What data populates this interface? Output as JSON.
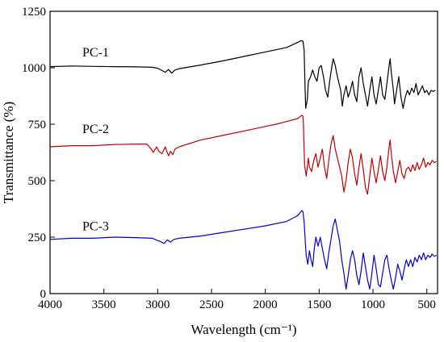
{
  "chart_data": {
    "type": "line",
    "title": "",
    "xlabel": "Wavelength (cm⁻¹)",
    "ylabel": "Transmittance (%)",
    "xlim": [
      4000,
      400
    ],
    "x_reversed": true,
    "ylim": [
      0,
      1250
    ],
    "xticks": [
      4000,
      3500,
      3000,
      2500,
      2000,
      1500,
      1000,
      500
    ],
    "yticks": [
      0,
      250,
      500,
      750,
      1000,
      1250
    ],
    "grid": false,
    "series": [
      {
        "name": "PC-1",
        "color": "#000000",
        "points": [
          [
            4000,
            1005
          ],
          [
            3800,
            1008
          ],
          [
            3600,
            1006
          ],
          [
            3400,
            1005
          ],
          [
            3200,
            1004
          ],
          [
            3050,
            1002
          ],
          [
            3000,
            998
          ],
          [
            2960,
            988
          ],
          [
            2930,
            980
          ],
          [
            2900,
            992
          ],
          [
            2870,
            976
          ],
          [
            2840,
            990
          ],
          [
            2800,
            996
          ],
          [
            2600,
            1012
          ],
          [
            2400,
            1030
          ],
          [
            2200,
            1050
          ],
          [
            2000,
            1070
          ],
          [
            1800,
            1090
          ],
          [
            1700,
            1112
          ],
          [
            1670,
            1120
          ],
          [
            1650,
            1118
          ],
          [
            1640,
            1080
          ],
          [
            1630,
            900
          ],
          [
            1625,
            820
          ],
          [
            1610,
            860
          ],
          [
            1600,
            940
          ],
          [
            1580,
            960
          ],
          [
            1560,
            990
          ],
          [
            1540,
            960
          ],
          [
            1520,
            940
          ],
          [
            1500,
            1000
          ],
          [
            1480,
            1010
          ],
          [
            1460,
            960
          ],
          [
            1440,
            900
          ],
          [
            1420,
            870
          ],
          [
            1400,
            950
          ],
          [
            1380,
            1010
          ],
          [
            1370,
            1040
          ],
          [
            1350,
            1010
          ],
          [
            1330,
            960
          ],
          [
            1300,
            900
          ],
          [
            1285,
            830
          ],
          [
            1270,
            880
          ],
          [
            1250,
            920
          ],
          [
            1230,
            870
          ],
          [
            1210,
            900
          ],
          [
            1190,
            940
          ],
          [
            1170,
            880
          ],
          [
            1150,
            850
          ],
          [
            1130,
            960
          ],
          [
            1110,
            1000
          ],
          [
            1090,
            930
          ],
          [
            1070,
            880
          ],
          [
            1050,
            830
          ],
          [
            1030,
            900
          ],
          [
            1010,
            960
          ],
          [
            990,
            880
          ],
          [
            970,
            840
          ],
          [
            950,
            900
          ],
          [
            930,
            960
          ],
          [
            910,
            880
          ],
          [
            890,
            860
          ],
          [
            870,
            930
          ],
          [
            850,
            1010
          ],
          [
            840,
            1040
          ],
          [
            830,
            980
          ],
          [
            810,
            900
          ],
          [
            800,
            840
          ],
          [
            780,
            900
          ],
          [
            760,
            960
          ],
          [
            740,
            870
          ],
          [
            720,
            820
          ],
          [
            700,
            870
          ],
          [
            680,
            900
          ],
          [
            660,
            880
          ],
          [
            640,
            910
          ],
          [
            620,
            890
          ],
          [
            600,
            930
          ],
          [
            580,
            880
          ],
          [
            560,
            900
          ],
          [
            540,
            920
          ],
          [
            520,
            890
          ],
          [
            500,
            900
          ],
          [
            480,
            880
          ],
          [
            460,
            900
          ],
          [
            440,
            895
          ],
          [
            420,
            900
          ]
        ]
      },
      {
        "name": "PC-2",
        "color": "#c00000",
        "points": [
          [
            4000,
            650
          ],
          [
            3800,
            655
          ],
          [
            3600,
            655
          ],
          [
            3400,
            660
          ],
          [
            3200,
            662
          ],
          [
            3100,
            662
          ],
          [
            3060,
            640
          ],
          [
            3040,
            625
          ],
          [
            3010,
            650
          ],
          [
            2990,
            630
          ],
          [
            2960,
            620
          ],
          [
            2930,
            650
          ],
          [
            2900,
            610
          ],
          [
            2880,
            630
          ],
          [
            2860,
            615
          ],
          [
            2840,
            640
          ],
          [
            2800,
            650
          ],
          [
            2600,
            680
          ],
          [
            2400,
            700
          ],
          [
            2200,
            720
          ],
          [
            2000,
            740
          ],
          [
            1900,
            750
          ],
          [
            1800,
            762
          ],
          [
            1700,
            775
          ],
          [
            1660,
            790
          ],
          [
            1650,
            785
          ],
          [
            1645,
            740
          ],
          [
            1640,
            640
          ],
          [
            1635,
            570
          ],
          [
            1620,
            520
          ],
          [
            1600,
            600
          ],
          [
            1590,
            560
          ],
          [
            1570,
            540
          ],
          [
            1550,
            590
          ],
          [
            1530,
            620
          ],
          [
            1510,
            560
          ],
          [
            1490,
            600
          ],
          [
            1470,
            640
          ],
          [
            1450,
            560
          ],
          [
            1430,
            510
          ],
          [
            1410,
            590
          ],
          [
            1390,
            660
          ],
          [
            1370,
            700
          ],
          [
            1350,
            640
          ],
          [
            1330,
            600
          ],
          [
            1310,
            560
          ],
          [
            1290,
            520
          ],
          [
            1270,
            450
          ],
          [
            1250,
            500
          ],
          [
            1230,
            580
          ],
          [
            1210,
            640
          ],
          [
            1190,
            600
          ],
          [
            1170,
            530
          ],
          [
            1150,
            480
          ],
          [
            1130,
            560
          ],
          [
            1110,
            620
          ],
          [
            1090,
            550
          ],
          [
            1070,
            470
          ],
          [
            1050,
            440
          ],
          [
            1030,
            520
          ],
          [
            1010,
            600
          ],
          [
            990,
            540
          ],
          [
            970,
            490
          ],
          [
            950,
            550
          ],
          [
            930,
            610
          ],
          [
            910,
            540
          ],
          [
            890,
            500
          ],
          [
            870,
            560
          ],
          [
            850,
            650
          ],
          [
            840,
            680
          ],
          [
            830,
            620
          ],
          [
            810,
            540
          ],
          [
            790,
            490
          ],
          [
            770,
            540
          ],
          [
            750,
            590
          ],
          [
            730,
            530
          ],
          [
            710,
            510
          ],
          [
            690,
            550
          ],
          [
            670,
            560
          ],
          [
            650,
            540
          ],
          [
            630,
            570
          ],
          [
            610,
            545
          ],
          [
            590,
            580
          ],
          [
            570,
            550
          ],
          [
            550,
            570
          ],
          [
            530,
            600
          ],
          [
            510,
            560
          ],
          [
            490,
            580
          ],
          [
            470,
            570
          ],
          [
            450,
            590
          ],
          [
            430,
            580
          ],
          [
            410,
            585
          ]
        ]
      },
      {
        "name": "PC-3",
        "color": "#0000cc",
        "points": [
          [
            4000,
            240
          ],
          [
            3800,
            245
          ],
          [
            3600,
            245
          ],
          [
            3400,
            250
          ],
          [
            3200,
            248
          ],
          [
            3050,
            245
          ],
          [
            3000,
            235
          ],
          [
            2970,
            230
          ],
          [
            2940,
            222
          ],
          [
            2910,
            238
          ],
          [
            2880,
            228
          ],
          [
            2850,
            240
          ],
          [
            2800,
            245
          ],
          [
            2600,
            255
          ],
          [
            2400,
            270
          ],
          [
            2200,
            285
          ],
          [
            2000,
            300
          ],
          [
            1800,
            320
          ],
          [
            1700,
            345
          ],
          [
            1660,
            368
          ],
          [
            1650,
            362
          ],
          [
            1640,
            320
          ],
          [
            1630,
            240
          ],
          [
            1620,
            170
          ],
          [
            1605,
            130
          ],
          [
            1590,
            190
          ],
          [
            1575,
            150
          ],
          [
            1560,
            120
          ],
          [
            1545,
            200
          ],
          [
            1530,
            250
          ],
          [
            1510,
            210
          ],
          [
            1490,
            250
          ],
          [
            1470,
            200
          ],
          [
            1450,
            150
          ],
          [
            1430,
            110
          ],
          [
            1410,
            180
          ],
          [
            1390,
            240
          ],
          [
            1370,
            300
          ],
          [
            1350,
            330
          ],
          [
            1330,
            280
          ],
          [
            1310,
            230
          ],
          [
            1290,
            150
          ],
          [
            1270,
            90
          ],
          [
            1250,
            20
          ],
          [
            1230,
            80
          ],
          [
            1210,
            150
          ],
          [
            1190,
            190
          ],
          [
            1170,
            150
          ],
          [
            1150,
            80
          ],
          [
            1130,
            40
          ],
          [
            1110,
            100
          ],
          [
            1090,
            180
          ],
          [
            1070,
            120
          ],
          [
            1050,
            60
          ],
          [
            1030,
            20
          ],
          [
            1010,
            90
          ],
          [
            990,
            170
          ],
          [
            970,
            110
          ],
          [
            950,
            40
          ],
          [
            930,
            30
          ],
          [
            910,
            90
          ],
          [
            890,
            150
          ],
          [
            870,
            170
          ],
          [
            850,
            110
          ],
          [
            830,
            60
          ],
          [
            810,
            20
          ],
          [
            790,
            70
          ],
          [
            770,
            130
          ],
          [
            750,
            100
          ],
          [
            730,
            60
          ],
          [
            710,
            110
          ],
          [
            690,
            150
          ],
          [
            670,
            120
          ],
          [
            650,
            150
          ],
          [
            630,
            120
          ],
          [
            610,
            160
          ],
          [
            590,
            140
          ],
          [
            570,
            170
          ],
          [
            550,
            150
          ],
          [
            530,
            180
          ],
          [
            510,
            150
          ],
          [
            490,
            170
          ],
          [
            470,
            160
          ],
          [
            450,
            175
          ],
          [
            430,
            165
          ],
          [
            410,
            170
          ]
        ]
      }
    ],
    "series_labels": [
      {
        "text": "PC-1",
        "x": 3700,
        "y": 1050
      },
      {
        "text": "PC-2",
        "x": 3700,
        "y": 710
      },
      {
        "text": "PC-3",
        "x": 3700,
        "y": 280
      }
    ]
  }
}
